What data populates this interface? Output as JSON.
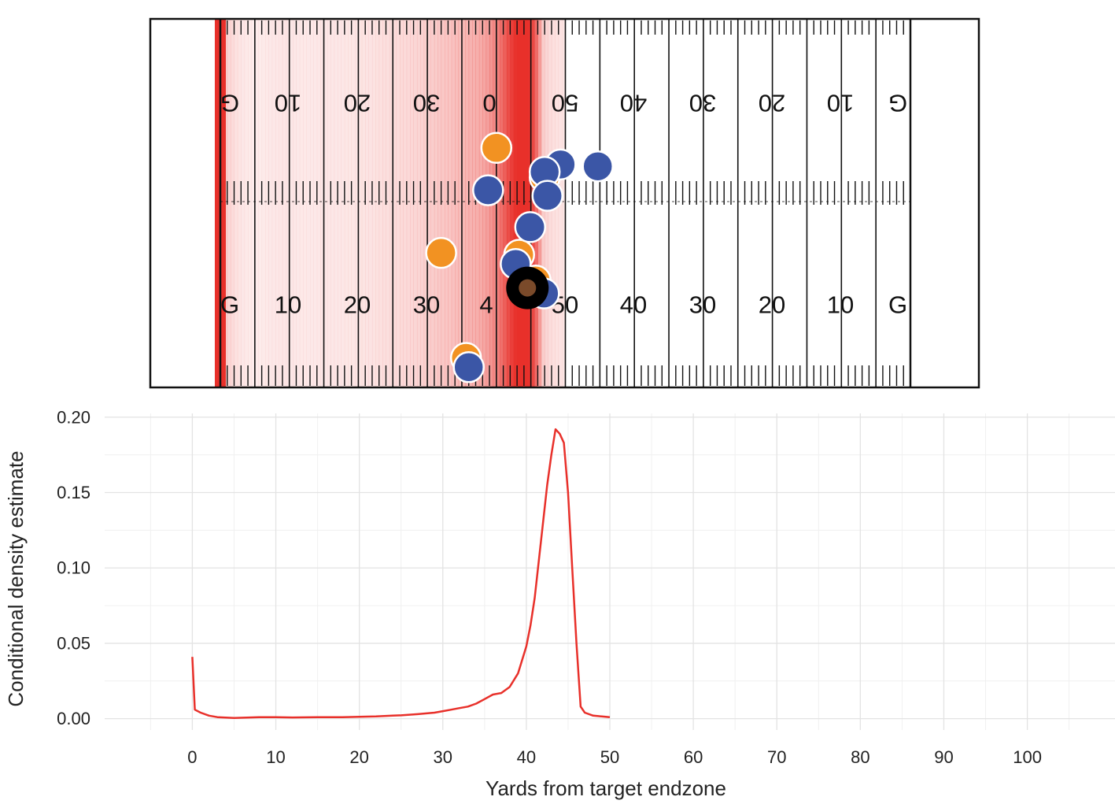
{
  "field": {
    "end_zone_label": "G",
    "bottom_numbers": [
      "10",
      "20",
      "30",
      "4",
      "50",
      "40",
      "30",
      "20",
      "10"
    ],
    "top_numbers": [
      "10",
      "20",
      "30",
      "0",
      "50",
      "40",
      "30",
      "20",
      "10"
    ],
    "colors": {
      "density_shade": "#e8302a",
      "offense": "#f29222",
      "defense": "#3b56a6",
      "ball_carrier": "#000000",
      "ball_carrier_inner": "#7a4a2a",
      "field_line": "#111111"
    },
    "players": {
      "offense": [
        {
          "yards_from_endzone": 40.0,
          "width_frac": 0.35
        },
        {
          "yards_from_endzone": 32.0,
          "width_frac": 0.635
        },
        {
          "yards_from_endzone": 43.3,
          "width_frac": 0.64
        },
        {
          "yards_from_endzone": 35.6,
          "width_frac": 0.92
        },
        {
          "yards_from_endzone": 45.7,
          "width_frac": 0.71
        },
        {
          "yards_from_endzone": 47.0,
          "width_frac": 0.43
        }
      ],
      "defense": [
        {
          "yards_from_endzone": 49.3,
          "width_frac": 0.395
        },
        {
          "yards_from_endzone": 54.7,
          "width_frac": 0.4
        },
        {
          "yards_from_endzone": 47.0,
          "width_frac": 0.415
        },
        {
          "yards_from_endzone": 38.8,
          "width_frac": 0.465
        },
        {
          "yards_from_endzone": 47.4,
          "width_frac": 0.48
        },
        {
          "yards_from_endzone": 44.9,
          "width_frac": 0.565
        },
        {
          "yards_from_endzone": 42.8,
          "width_frac": 0.665
        },
        {
          "yards_from_endzone": 46.9,
          "width_frac": 0.745
        },
        {
          "yards_from_endzone": 36.0,
          "width_frac": 0.945
        }
      ],
      "ball_carrier": {
        "yards_from_endzone": 44.5,
        "width_frac": 0.73
      }
    }
  },
  "chart_data": {
    "type": "line",
    "title": "",
    "xlabel": "Yards from target endzone",
    "ylabel": "Conditional density estimate",
    "xlim": [
      -10.5,
      110.5
    ],
    "ylim": [
      -0.0075,
      0.2025
    ],
    "x_ticks": [
      0,
      10,
      20,
      30,
      40,
      50,
      60,
      70,
      80,
      90,
      100
    ],
    "y_ticks": [
      0.0,
      0.05,
      0.1,
      0.15,
      0.2
    ],
    "y_tick_labels": [
      "0.00",
      "0.05",
      "0.10",
      "0.15",
      "0.20"
    ],
    "grid": true,
    "series": [
      {
        "color": "#e8302a",
        "x": [
          0,
          0.3,
          1,
          2,
          3,
          5,
          8,
          10,
          12,
          15,
          18,
          20,
          22,
          24,
          25,
          27,
          29,
          30,
          31,
          32,
          33,
          34,
          35,
          36,
          37,
          38,
          39,
          40,
          40.5,
          41,
          41.5,
          42,
          42.5,
          43,
          43.5,
          44,
          44.5,
          45,
          45.5,
          46,
          46.5,
          47,
          48,
          49,
          50
        ],
        "y": [
          0.041,
          0.006,
          0.004,
          0.002,
          0.001,
          0.0005,
          0.001,
          0.001,
          0.0008,
          0.001,
          0.001,
          0.0012,
          0.0015,
          0.002,
          0.0022,
          0.003,
          0.004,
          0.005,
          0.006,
          0.007,
          0.008,
          0.01,
          0.013,
          0.016,
          0.017,
          0.021,
          0.03,
          0.048,
          0.062,
          0.08,
          0.105,
          0.13,
          0.155,
          0.175,
          0.192,
          0.189,
          0.183,
          0.15,
          0.1,
          0.05,
          0.008,
          0.004,
          0.002,
          0.0015,
          0.001
        ]
      }
    ]
  }
}
